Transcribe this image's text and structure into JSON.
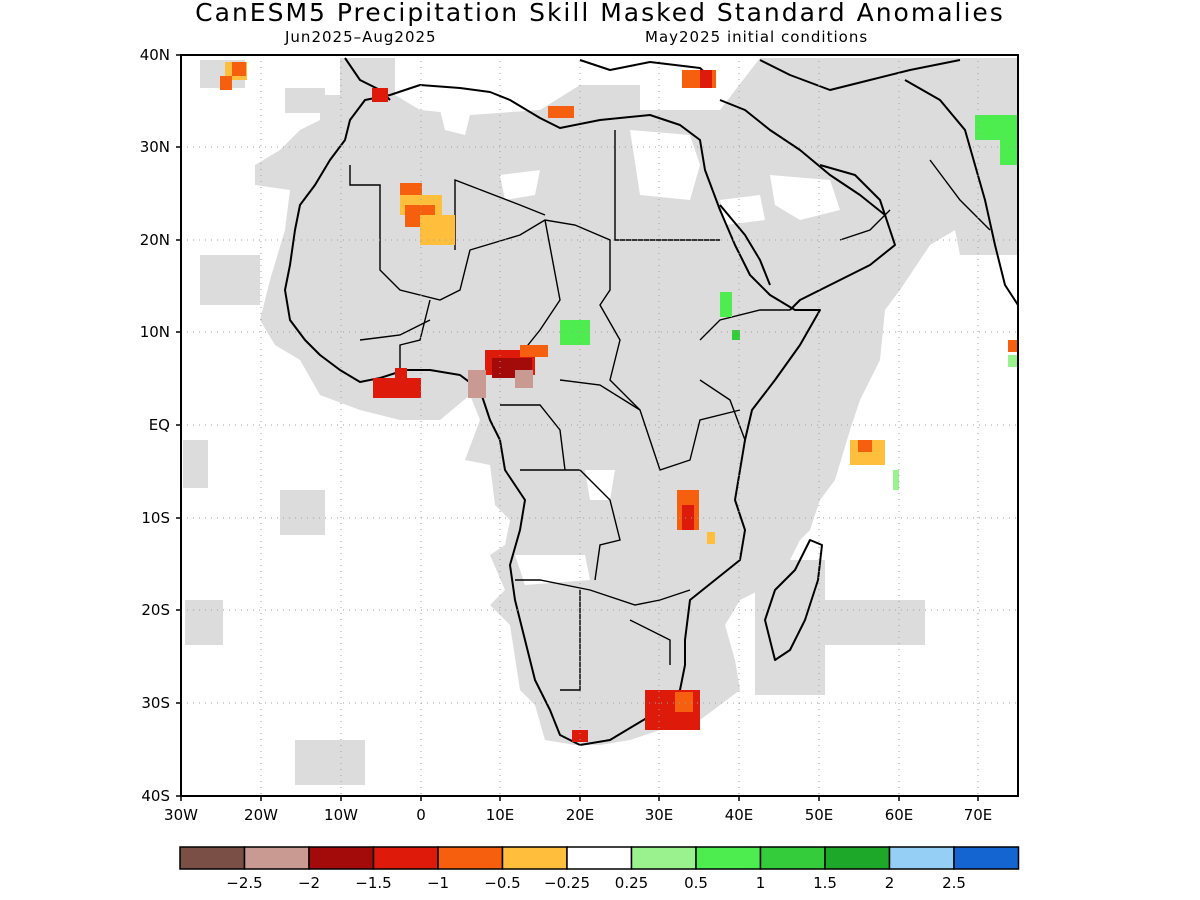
{
  "title": "CanESM5 Precipitation Skill Masked Standard Anomalies",
  "subtitle_left": "Jun2025–Aug2025",
  "subtitle_right": "May2025 initial conditions",
  "lat_ticks": [
    "40N",
    "30N",
    "20N",
    "10N",
    "EQ",
    "10S",
    "20S",
    "30S",
    "40S"
  ],
  "lon_ticks": [
    "30W",
    "20W",
    "10W",
    "0",
    "10E",
    "20E",
    "30E",
    "40E",
    "50E",
    "60E",
    "70E"
  ],
  "colorbar": {
    "colors": [
      "#7a4f45",
      "#c89a92",
      "#a30a0a",
      "#de1a0b",
      "#f55f0d",
      "#ffbf3c",
      "#ffffff",
      "#9af28e",
      "#4ded4f",
      "#34cc3a",
      "#1ea82a",
      "#96cff5",
      "#1464d2"
    ],
    "labels": [
      "−2.5",
      "−2",
      "−1.5",
      "−1",
      "−0.5",
      "−0.25",
      "0.25",
      "0.5",
      "1",
      "1.5",
      "2",
      "2.5"
    ]
  },
  "colors": {
    "skill_mask": "#dcdcdc",
    "ocean": "#ffffff",
    "coast": "#000000"
  }
}
